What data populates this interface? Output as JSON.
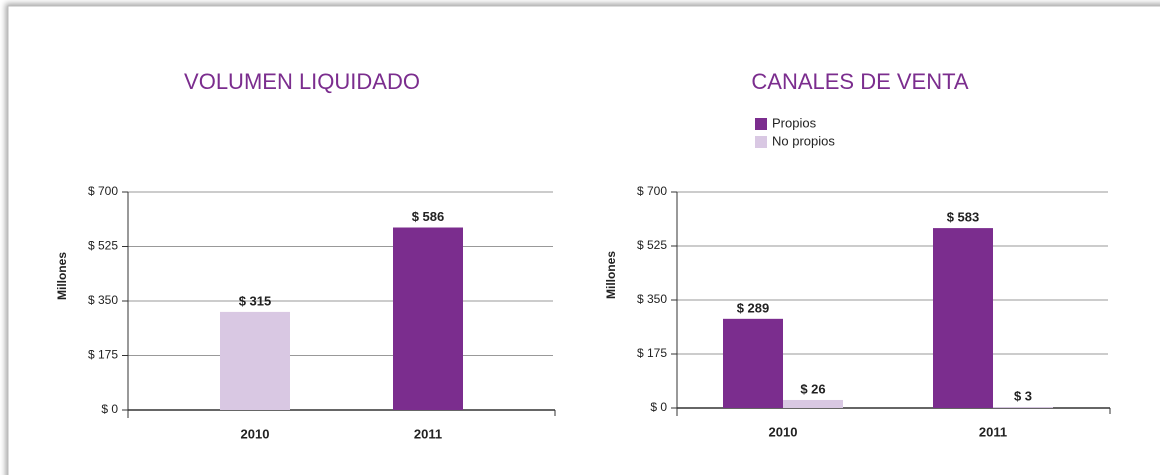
{
  "chart_data": [
    {
      "type": "bar",
      "title": "VOLUMEN LIQUIDADO",
      "y_label": "Millones",
      "categories": [
        "2010",
        "2011"
      ],
      "values": [
        315,
        586
      ],
      "value_labels": [
        "$ 315",
        "$ 586"
      ],
      "colors": [
        "#d9c8e3",
        "#7b2d8e"
      ],
      "ylim": [
        0,
        700
      ],
      "yticks": [
        {
          "value": 0,
          "label": "$ 0"
        },
        {
          "value": 175,
          "label": "$ 175"
        },
        {
          "value": 350,
          "label": "$ 350"
        },
        {
          "value": 525,
          "label": "$ 525"
        },
        {
          "value": 700,
          "label": "$ 700"
        }
      ],
      "grid": true
    },
    {
      "type": "grouped_bar",
      "title": "CANALES DE VENTA",
      "y_label": "Millones",
      "categories": [
        "2010",
        "2011"
      ],
      "series": [
        {
          "name": "Propios",
          "color": "#7b2d8e",
          "values": [
            289,
            583
          ],
          "value_labels": [
            "$ 289",
            "$ 583"
          ]
        },
        {
          "name": "No propios",
          "color": "#d9c8e3",
          "values": [
            26,
            3
          ],
          "value_labels": [
            "$ 26",
            "$ 3"
          ]
        }
      ],
      "ylim": [
        0,
        700
      ],
      "yticks": [
        {
          "value": 0,
          "label": "$ 0"
        },
        {
          "value": 175,
          "label": "$ 175"
        },
        {
          "value": 350,
          "label": "$ 350"
        },
        {
          "value": 525,
          "label": "$ 525"
        },
        {
          "value": 700,
          "label": "$ 700"
        }
      ],
      "grid": true,
      "legend": "top"
    }
  ]
}
